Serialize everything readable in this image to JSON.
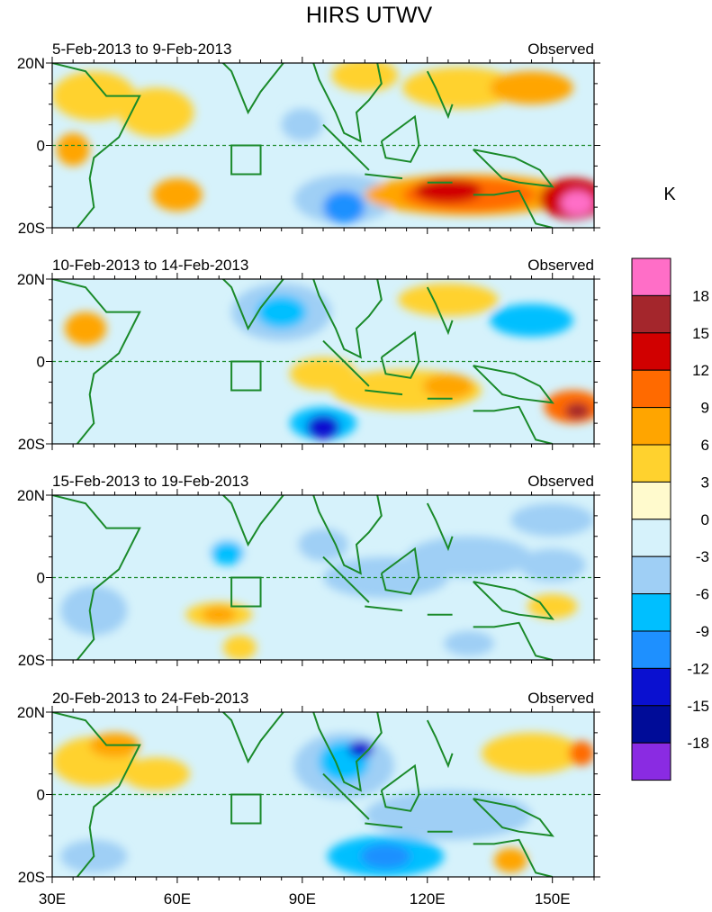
{
  "chart_data": {
    "type": "heatmap",
    "title": "HIRS UTWV",
    "colorbar": {
      "unit": "K",
      "labels": [
        "18",
        "15",
        "12",
        "9",
        "6",
        "3",
        "0",
        "-3",
        "-6",
        "-9",
        "-12",
        "-15",
        "-18"
      ],
      "colors": [
        "#ff6ec7",
        "#a4262c",
        "#d10000",
        "#ff6a00",
        "#ffa500",
        "#ffd22e",
        "#fffacd",
        "#d6f2fb",
        "#9fcff5",
        "#00bfff",
        "#1e90ff",
        "#0a10d0",
        "#000c98",
        "#8a2be2"
      ]
    },
    "xaxis": {
      "ticks": [
        "30E",
        "60E",
        "90E",
        "120E",
        "150E"
      ],
      "range": [
        30,
        160
      ]
    },
    "yaxis": {
      "ticks": [
        "20N",
        "0",
        "20S"
      ],
      "range": [
        -20,
        20
      ]
    },
    "panels": [
      {
        "period": "5-Feb-2013 to 9-Feb-2013",
        "label": "Observed"
      },
      {
        "period": "10-Feb-2013 to 14-Feb-2013",
        "label": "Observed"
      },
      {
        "period": "15-Feb-2013 to 19-Feb-2013",
        "label": "Observed"
      },
      {
        "period": "20-Feb-2013 to 24-Feb-2013",
        "label": "Observed"
      }
    ],
    "equator_line": "dashed",
    "region_box": {
      "lon": [
        73,
        80
      ],
      "lat": [
        -7,
        0
      ]
    }
  }
}
